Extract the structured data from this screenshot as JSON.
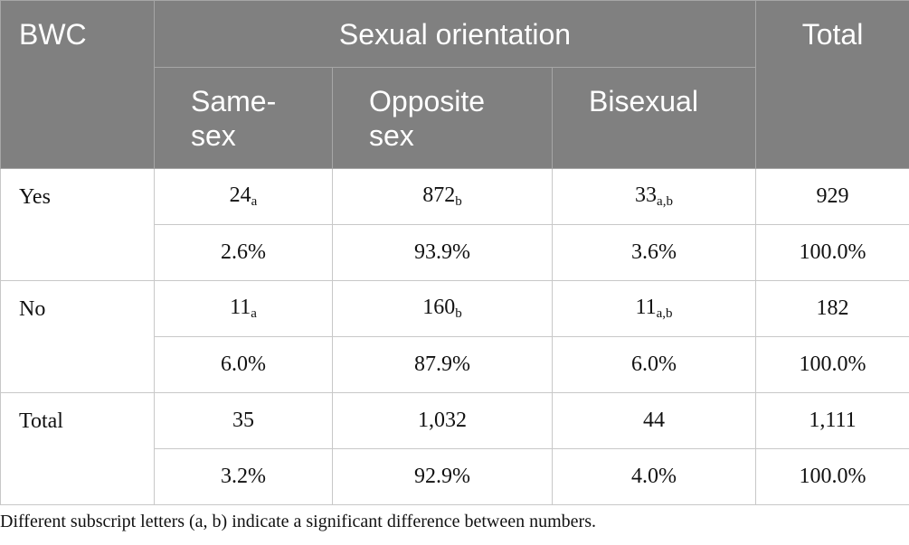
{
  "header": {
    "row_label": "BWC",
    "group": "Sexual orientation",
    "columns": [
      "Same-sex",
      "Opposite sex",
      "Bisexual"
    ],
    "total": "Total"
  },
  "rows": [
    {
      "label": "Yes",
      "counts": [
        {
          "value": "24",
          "sub": "a"
        },
        {
          "value": "872",
          "sub": "b"
        },
        {
          "value": "33",
          "sub": "a,b"
        }
      ],
      "count_total": "929",
      "percents": [
        "2.6%",
        "93.9%",
        "3.6%"
      ],
      "percent_total": "100.0%"
    },
    {
      "label": "No",
      "counts": [
        {
          "value": "11",
          "sub": "a"
        },
        {
          "value": "160",
          "sub": "b"
        },
        {
          "value": "11",
          "sub": "a,b"
        }
      ],
      "count_total": "182",
      "percents": [
        "6.0%",
        "87.9%",
        "6.0%"
      ],
      "percent_total": "100.0%"
    },
    {
      "label": "Total",
      "counts": [
        {
          "value": "35"
        },
        {
          "value": "1,032"
        },
        {
          "value": "44"
        }
      ],
      "count_total": "1,111",
      "percents": [
        "3.2%",
        "92.9%",
        "4.0%"
      ],
      "percent_total": "100.0%"
    }
  ],
  "note": "Different subscript letters (a, b) indicate a significant difference between numbers."
}
